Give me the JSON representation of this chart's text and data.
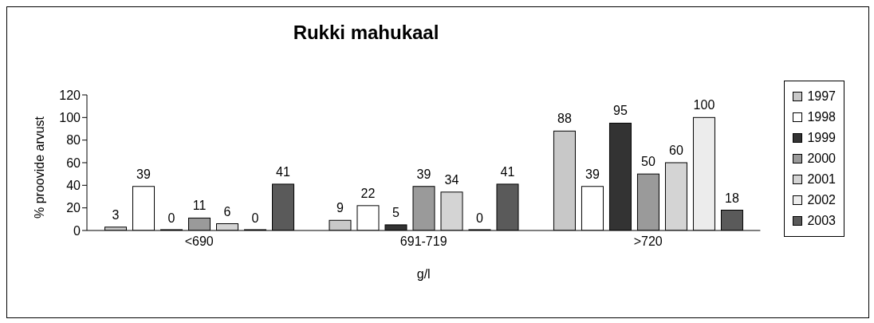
{
  "chart_data": {
    "type": "bar",
    "title": "Rukki mahukaal",
    "xlabel": "g/l",
    "ylabel": "% proovide arvust",
    "categories": [
      "<690",
      "691-719",
      ">720"
    ],
    "series": [
      {
        "name": "1997",
        "color": "#c8c8c8",
        "values": [
          3,
          9,
          88
        ]
      },
      {
        "name": "1998",
        "color": "#ffffff",
        "values": [
          39,
          22,
          39
        ]
      },
      {
        "name": "1999",
        "color": "#333333",
        "values": [
          0,
          5,
          95
        ]
      },
      {
        "name": "2000",
        "color": "#9a9a9a",
        "values": [
          11,
          39,
          50
        ]
      },
      {
        "name": "2001",
        "color": "#d4d4d4",
        "values": [
          6,
          34,
          60
        ]
      },
      {
        "name": "2002",
        "color": "#ececec",
        "values": [
          0,
          0,
          100
        ]
      },
      {
        "name": "2003",
        "color": "#5a5a5a",
        "values": [
          41,
          41,
          18
        ]
      }
    ],
    "ylim": [
      0,
      120
    ],
    "yticks": [
      0,
      20,
      40,
      60,
      80,
      100,
      120
    ],
    "grid": false,
    "legend": "right",
    "data_labels": true
  }
}
